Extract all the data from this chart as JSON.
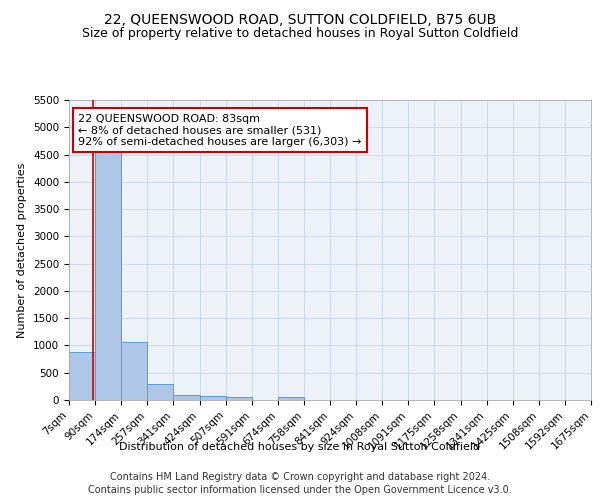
{
  "title": "22, QUEENSWOOD ROAD, SUTTON COLDFIELD, B75 6UB",
  "subtitle": "Size of property relative to detached houses in Royal Sutton Coldfield",
  "xlabel": "Distribution of detached houses by size in Royal Sutton Coldfield",
  "ylabel": "Number of detached properties",
  "footer_line1": "Contains HM Land Registry data © Crown copyright and database right 2024.",
  "footer_line2": "Contains public sector information licensed under the Open Government Licence v3.0.",
  "annotation_line1": "22 QUEENSWOOD ROAD: 83sqm",
  "annotation_line2": "← 8% of detached houses are smaller (531)",
  "annotation_line3": "92% of semi-detached houses are larger (6,303) →",
  "bin_labels": [
    "7sqm",
    "90sqm",
    "174sqm",
    "257sqm",
    "341sqm",
    "424sqm",
    "507sqm",
    "591sqm",
    "674sqm",
    "758sqm",
    "841sqm",
    "924sqm",
    "1008sqm",
    "1091sqm",
    "1175sqm",
    "1258sqm",
    "1341sqm",
    "1425sqm",
    "1508sqm",
    "1592sqm",
    "1675sqm"
  ],
  "bar_values": [
    880,
    4580,
    1060,
    290,
    90,
    80,
    55,
    0,
    50,
    0,
    0,
    0,
    0,
    0,
    0,
    0,
    0,
    0,
    0,
    0
  ],
  "bar_color": "#aec6e8",
  "bar_edge_color": "#5b9bd5",
  "property_sqm": 83,
  "ylim": [
    0,
    5500
  ],
  "yticks": [
    0,
    500,
    1000,
    1500,
    2000,
    2500,
    3000,
    3500,
    4000,
    4500,
    5000,
    5500
  ],
  "title_fontsize": 10,
  "subtitle_fontsize": 9,
  "axis_label_fontsize": 8,
  "tick_fontsize": 7.5,
  "annotation_fontsize": 8,
  "footer_fontsize": 7,
  "background_color": "#ffffff",
  "plot_bg_color": "#edf2f9",
  "grid_color": "#c8d4e8",
  "annotation_box_color": "#ffffff",
  "annotation_box_edge": "#cc0000",
  "red_line_color": "#cc0000"
}
